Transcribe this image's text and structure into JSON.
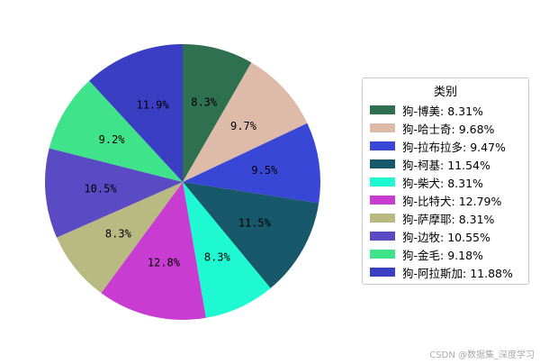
{
  "chart_data": {
    "type": "pie",
    "legend_title": "类别",
    "legend_placement": "right",
    "start_angle_deg": 90,
    "direction": "clockwise",
    "slices": [
      {
        "label": "狗-博美",
        "value": 8.31,
        "pct_label": "8.3%",
        "color": "#2e7050"
      },
      {
        "label": "狗-哈士奇",
        "value": 9.68,
        "pct_label": "9.7%",
        "color": "#ddbba8"
      },
      {
        "label": "狗-拉布拉多",
        "value": 9.47,
        "pct_label": "9.5%",
        "color": "#3847d6"
      },
      {
        "label": "狗-柯基",
        "value": 11.54,
        "pct_label": "11.5%",
        "color": "#17586a"
      },
      {
        "label": "狗-柴犬",
        "value": 8.31,
        "pct_label": "8.3%",
        "color": "#1ef9d2"
      },
      {
        "label": "狗-比特犬",
        "value": 12.79,
        "pct_label": "12.8%",
        "color": "#c83cd2"
      },
      {
        "label": "狗-萨摩耶",
        "value": 8.31,
        "pct_label": "8.3%",
        "color": "#b8ba82"
      },
      {
        "label": "狗-边牧",
        "value": 10.55,
        "pct_label": "10.5%",
        "color": "#5a4ac4"
      },
      {
        "label": "狗-金毛",
        "value": 9.18,
        "pct_label": "9.2%",
        "color": "#3fe38a"
      },
      {
        "label": "狗-阿拉斯加",
        "value": 11.88,
        "pct_label": "11.9%",
        "color": "#3a3ec2"
      }
    ],
    "legend_entries": [
      "狗-博美: 8.31%",
      "狗-哈士奇: 9.68%",
      "狗-拉布拉多: 9.47%",
      "狗-柯基: 11.54%",
      "狗-柴犬: 8.31%",
      "狗-比特犬: 12.79%",
      "狗-萨摩耶: 8.31%",
      "狗-边牧: 10.55%",
      "狗-金毛: 9.18%",
      "狗-阿拉斯加: 11.88%"
    ]
  },
  "watermark": "CSDN @数据集_深度学习"
}
